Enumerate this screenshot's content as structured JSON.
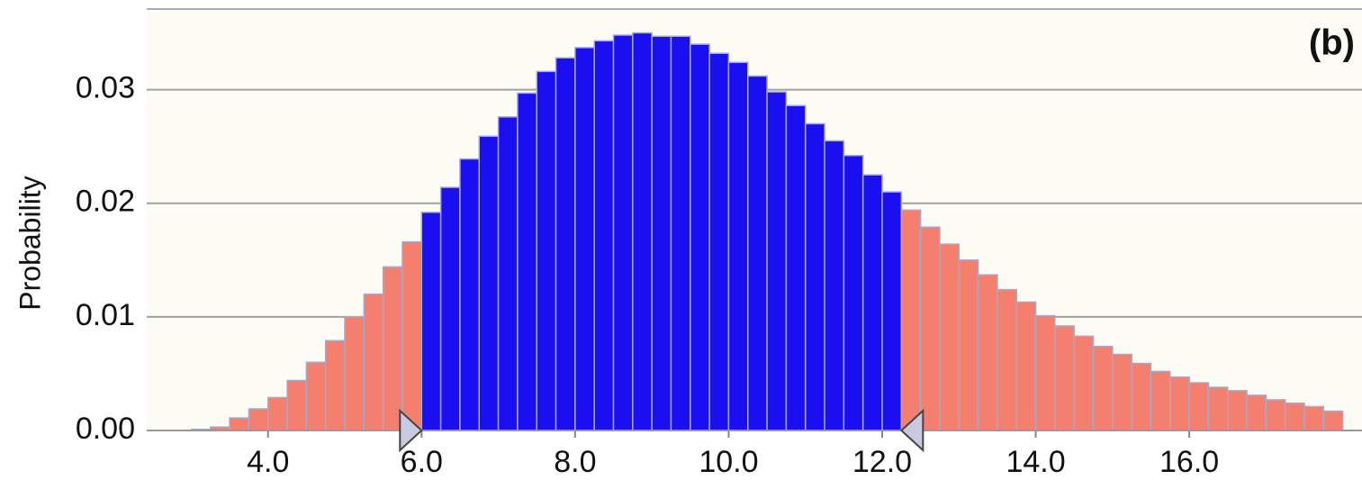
{
  "chart_data": {
    "type": "histogram",
    "title": "(b)",
    "y_label": "Probability",
    "bins": [
      3.0,
      3.25,
      3.5,
      3.75,
      4.0,
      4.25,
      4.5,
      4.75,
      5.0,
      5.25,
      5.5,
      5.75,
      6.0,
      6.25,
      6.5,
      6.75,
      7.0,
      7.25,
      7.5,
      7.75,
      8.0,
      8.25,
      8.5,
      8.75,
      9.0,
      9.25,
      9.5,
      9.75,
      10.0,
      10.25,
      10.5,
      10.75,
      11.0,
      11.25,
      11.5,
      11.75,
      12.0,
      12.25,
      12.5,
      12.75,
      13.0,
      13.25,
      13.5,
      13.75,
      14.0,
      14.25,
      14.5,
      14.75,
      15.0,
      15.25,
      15.5,
      15.75,
      16.0,
      16.25,
      16.5,
      16.75,
      17.0,
      17.25,
      17.5,
      17.75,
      18.0
    ],
    "values": [
      0.0001,
      0.0003,
      0.0011,
      0.0019,
      0.0029,
      0.0044,
      0.006,
      0.0079,
      0.01,
      0.012,
      0.0144,
      0.0166,
      0.0192,
      0.0214,
      0.0239,
      0.0259,
      0.0276,
      0.0297,
      0.0316,
      0.0328,
      0.0337,
      0.0343,
      0.0348,
      0.035,
      0.0347,
      0.0347,
      0.034,
      0.0332,
      0.0324,
      0.0312,
      0.0298,
      0.0286,
      0.027,
      0.0255,
      0.0242,
      0.0225,
      0.021,
      0.0194,
      0.0179,
      0.0164,
      0.015,
      0.0137,
      0.0124,
      0.0113,
      0.0101,
      0.0092,
      0.0083,
      0.0074,
      0.0067,
      0.0059,
      0.0052,
      0.0047,
      0.0042,
      0.0038,
      0.0035,
      0.0031,
      0.0027,
      0.0024,
      0.0021,
      0.0017
    ],
    "color": "#f47f6f",
    "selection": [
      6.0,
      12.25
    ],
    "selection_color": "#1a0ff0",
    "xlim": [
      2.42,
      18.25
    ],
    "ylim": [
      0,
      0.0371
    ],
    "xticks": [
      {
        "value": 4,
        "label": "4.0"
      },
      {
        "value": 6,
        "label": "6.0"
      },
      {
        "value": 8,
        "label": "8.0"
      },
      {
        "value": 10,
        "label": "10.0"
      },
      {
        "value": 12,
        "label": "12.0"
      },
      {
        "value": 14,
        "label": "14.0"
      },
      {
        "value": 16,
        "label": "16.0"
      }
    ],
    "yticks": [
      {
        "value": 0,
        "label": "0.00"
      },
      {
        "value": 0.01,
        "label": "0.01"
      },
      {
        "value": 0.02,
        "label": "0.02"
      },
      {
        "value": 0.03,
        "label": "0.03"
      }
    ],
    "grid": true
  }
}
